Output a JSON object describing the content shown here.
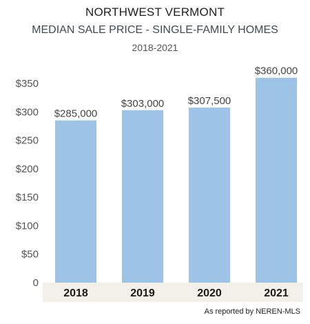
{
  "chart_data": {
    "type": "bar",
    "title": "NORTHWEST VERMONT",
    "subtitle": "MEDIAN SALE PRICE - SINGLE-FAMILY HOMES",
    "date_range": "2018-2021",
    "categories": [
      "2018",
      "2019",
      "2020",
      "2021"
    ],
    "values": [
      285000,
      303000,
      307500,
      360000
    ],
    "value_labels": [
      "$285,000",
      "$303,000",
      "$307,500",
      "$360,000"
    ],
    "y_ticks": [
      0,
      50,
      100,
      150,
      200,
      250,
      300,
      350
    ],
    "y_tick_labels": [
      "0",
      "$50",
      "$100",
      "$150",
      "$200",
      "$250",
      "$300",
      "$350"
    ],
    "y_unit": 1000,
    "ylim": [
      0,
      350000
    ],
    "grid": false,
    "bar_color": "#9dc3e6",
    "axis_band_color": "#f3f0ea",
    "xlabel": "",
    "ylabel": ""
  },
  "footnote": "As reported by NEREN-MLS"
}
